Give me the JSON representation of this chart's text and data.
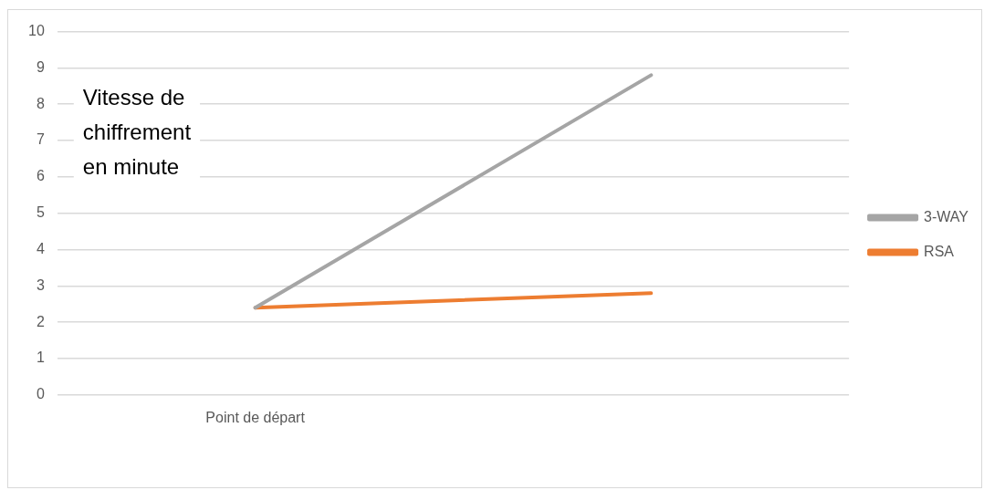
{
  "chart_data": {
    "type": "line",
    "categories": [
      "Point de départ",
      null
    ],
    "series": [
      {
        "name": "3-WAY",
        "color": "#a5a5a5",
        "values": [
          2.4,
          8.8
        ]
      },
      {
        "name": "RSA",
        "color": "#ed7d31",
        "values": [
          2.4,
          2.8
        ]
      }
    ],
    "ylim": [
      0,
      10
    ],
    "yticks": [
      0,
      1,
      2,
      3,
      4,
      5,
      6,
      7,
      8,
      9,
      10
    ],
    "grid": "y",
    "legend": "right",
    "marker": "none",
    "line_style": "solid",
    "annotations": [
      "Vitesse de chiffrement en minute"
    ]
  }
}
